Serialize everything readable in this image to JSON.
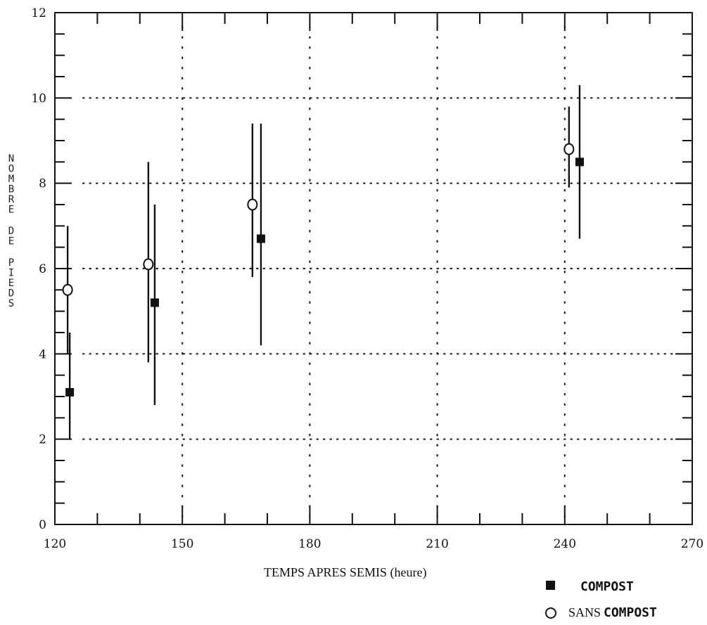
{
  "chart_data": {
    "type": "scatter",
    "title": "",
    "xlabel": "TEMPS APRES SEMIS (heure)",
    "ylabel": "NOMBRE DE PIEDS",
    "xlim": [
      120,
      270
    ],
    "ylim": [
      0,
      12
    ],
    "x_ticks": [
      "120",
      "150",
      "180",
      "210",
      "240",
      "270"
    ],
    "y_ticks": [
      "0",
      "2",
      "4",
      "6",
      "8",
      "10",
      "12"
    ],
    "grid": "dotted",
    "legend_position": "bottom-right",
    "series": [
      {
        "name": "COMPOST",
        "marker": "filled-square",
        "color": "#111111",
        "points": [
          {
            "x": 123.5,
            "y": 3.1,
            "low": 2.0,
            "high": 4.5
          },
          {
            "x": 143.5,
            "y": 5.2,
            "low": 2.8,
            "high": 7.5
          },
          {
            "x": 168.5,
            "y": 6.7,
            "low": 4.2,
            "high": 9.4
          },
          {
            "x": 243.5,
            "y": 8.5,
            "low": 6.7,
            "high": 10.3
          }
        ]
      },
      {
        "name": "SANS COMPOST",
        "marker": "open-circle",
        "color": "#111111",
        "points": [
          {
            "x": 123.0,
            "y": 5.5,
            "low": 4.0,
            "high": 7.0
          },
          {
            "x": 142.0,
            "y": 6.1,
            "low": 3.8,
            "high": 8.5
          },
          {
            "x": 166.5,
            "y": 7.5,
            "low": 5.8,
            "high": 9.4
          },
          {
            "x": 241.0,
            "y": 8.8,
            "low": 7.9,
            "high": 9.8
          }
        ]
      }
    ]
  },
  "legend": {
    "compost_label": "COMPOST",
    "sans_label": "SANS",
    "sans_compost_label": "COMPOST"
  }
}
